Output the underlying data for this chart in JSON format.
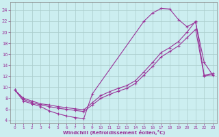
{
  "xlabel": "Windchill (Refroidissement éolien,°C)",
  "bg_color": "#cceef0",
  "grid_color": "#aacccc",
  "line_color": "#993399",
  "x_ticks": [
    0,
    1,
    2,
    3,
    4,
    5,
    6,
    7,
    8,
    9,
    10,
    11,
    12,
    13,
    14,
    15,
    16,
    17,
    18,
    19,
    20,
    21,
    22,
    23
  ],
  "y_ticks": [
    4,
    6,
    8,
    10,
    12,
    14,
    16,
    18,
    20,
    22,
    24
  ],
  "xlim": [
    -0.5,
    23.5
  ],
  "ylim": [
    3.5,
    25.5
  ],
  "line1_x": [
    0,
    1,
    2,
    3,
    4,
    5,
    6,
    7,
    8,
    9,
    15,
    16,
    17,
    18,
    19,
    20,
    21,
    22,
    23
  ],
  "line1_y": [
    9.5,
    7.5,
    7.0,
    6.5,
    5.7,
    5.2,
    4.8,
    4.5,
    4.3,
    8.8,
    22.0,
    23.5,
    24.3,
    24.2,
    22.3,
    21.0,
    21.8,
    14.5,
    12.2
  ],
  "line2_x": [
    0,
    1,
    2,
    3,
    4,
    5,
    6,
    7,
    8,
    9,
    10,
    11,
    12,
    13,
    14,
    15,
    16,
    17,
    18,
    19,
    20,
    21,
    22,
    23
  ],
  "line2_y": [
    9.5,
    8.0,
    7.5,
    7.0,
    6.8,
    6.5,
    6.3,
    6.1,
    5.9,
    7.2,
    8.5,
    9.2,
    9.8,
    10.3,
    11.2,
    12.8,
    14.5,
    16.3,
    17.2,
    18.3,
    20.0,
    22.0,
    12.2,
    12.5
  ],
  "line3_x": [
    0,
    1,
    2,
    3,
    4,
    5,
    6,
    7,
    8,
    9,
    10,
    11,
    12,
    13,
    14,
    15,
    16,
    17,
    18,
    19,
    20,
    21,
    22,
    23
  ],
  "line3_y": [
    9.5,
    7.8,
    7.2,
    6.8,
    6.5,
    6.2,
    6.0,
    5.8,
    5.6,
    6.8,
    8.0,
    8.7,
    9.3,
    9.8,
    10.7,
    12.2,
    13.8,
    15.5,
    16.5,
    17.5,
    19.0,
    20.5,
    12.0,
    12.3
  ]
}
